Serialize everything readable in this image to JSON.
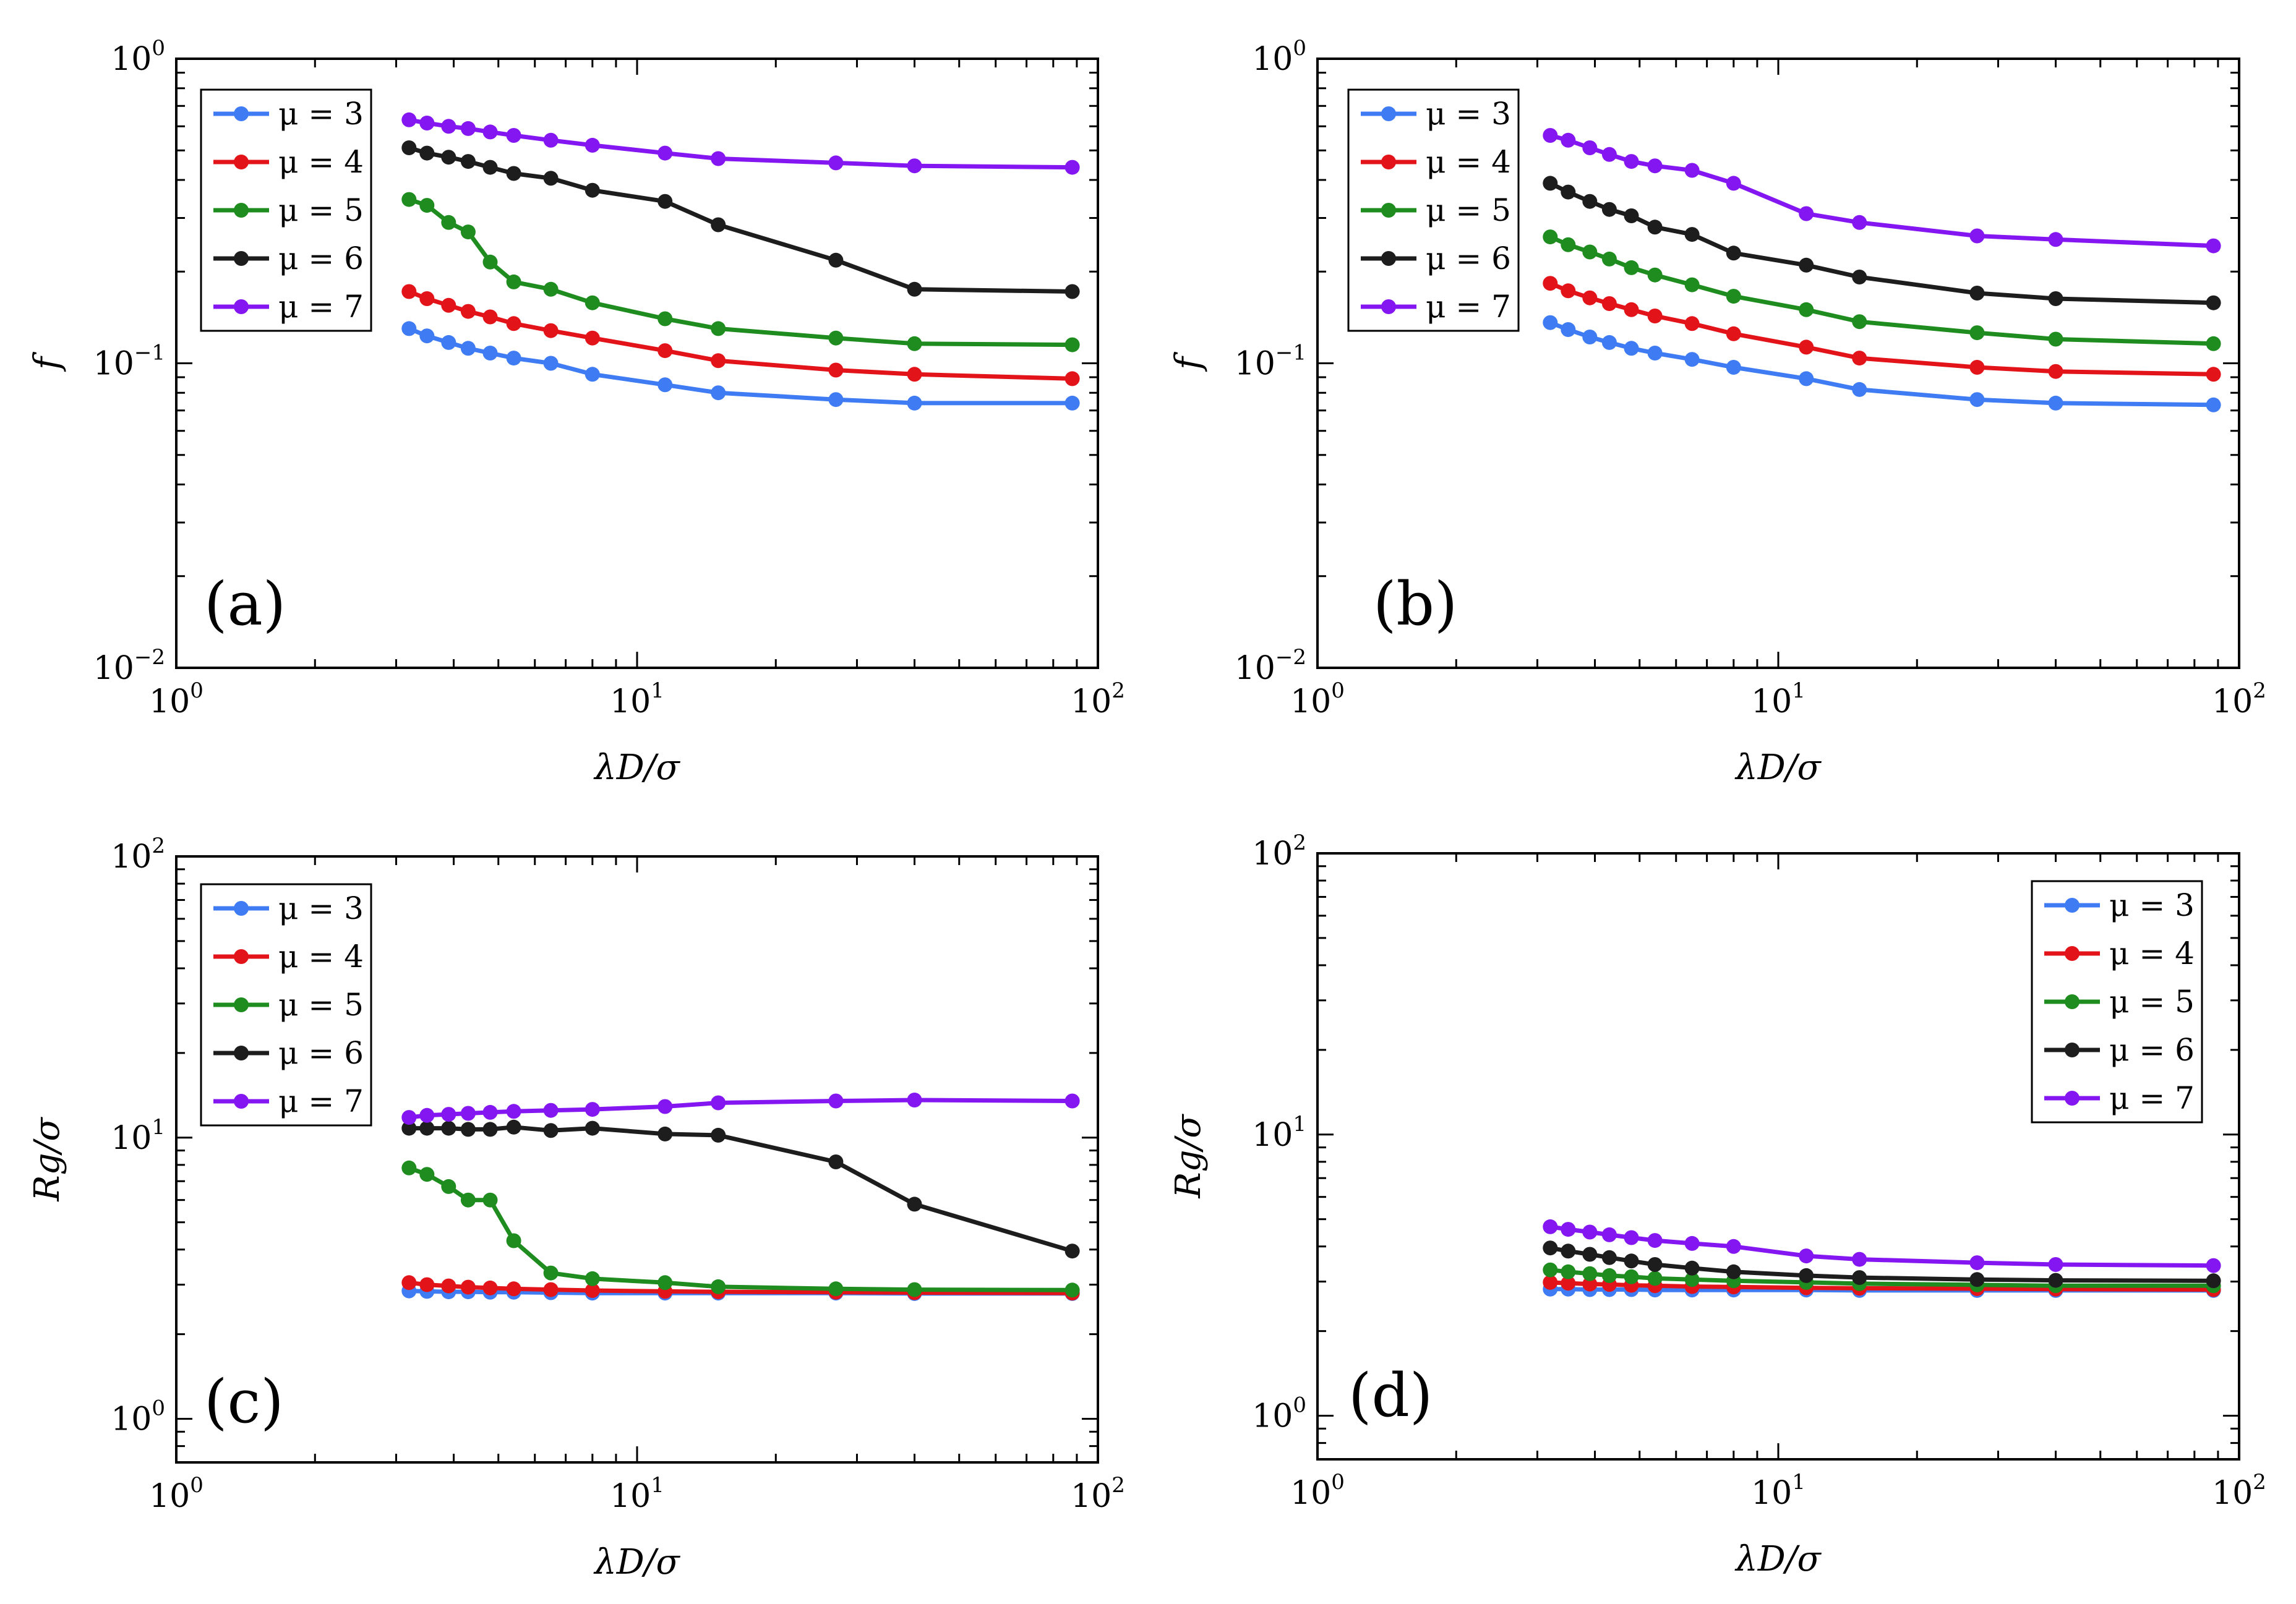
{
  "chart_data": [
    {
      "type": "line",
      "panel": "(a)",
      "xlabel": "λD/σ",
      "ylabel": "f",
      "xscale": "log",
      "yscale": "log",
      "xlim": [
        1,
        100
      ],
      "ylim": [
        0.01,
        1
      ],
      "x_ticks": [
        {
          "base": "10",
          "exp": "0"
        },
        {
          "base": "10",
          "exp": "1"
        },
        {
          "base": "10",
          "exp": "2"
        }
      ],
      "y_ticks": [
        {
          "base": "10",
          "exp": "−2"
        },
        {
          "base": "10",
          "exp": "−1"
        },
        {
          "base": "10",
          "exp": "0"
        }
      ],
      "legend_position": "top-left",
      "x": [
        3.2,
        3.5,
        3.9,
        4.3,
        4.8,
        5.4,
        6.5,
        8.0,
        11.5,
        15,
        27,
        40,
        88
      ],
      "series": [
        {
          "name": "μ = 3",
          "color": "#3f7cf3",
          "values": [
            0.13,
            0.123,
            0.117,
            0.112,
            0.108,
            0.104,
            0.1,
            0.092,
            0.085,
            0.08,
            0.076,
            0.074,
            0.074
          ]
        },
        {
          "name": "μ = 4",
          "color": "#e3131a",
          "values": [
            0.172,
            0.163,
            0.155,
            0.148,
            0.142,
            0.135,
            0.128,
            0.121,
            0.11,
            0.102,
            0.095,
            0.092,
            0.089
          ]
        },
        {
          "name": "μ = 5",
          "color": "#1e8c1e",
          "values": [
            0.345,
            0.33,
            0.29,
            0.27,
            0.215,
            0.185,
            0.175,
            0.158,
            0.14,
            0.13,
            0.121,
            0.116,
            0.115
          ]
        },
        {
          "name": "μ = 6",
          "color": "#1d1d1d",
          "values": [
            0.51,
            0.49,
            0.475,
            0.46,
            0.44,
            0.42,
            0.405,
            0.37,
            0.34,
            0.285,
            0.218,
            0.175,
            0.172
          ]
        },
        {
          "name": "μ = 7",
          "color": "#8416f2",
          "values": [
            0.63,
            0.615,
            0.6,
            0.59,
            0.575,
            0.56,
            0.54,
            0.52,
            0.49,
            0.47,
            0.455,
            0.445,
            0.44
          ]
        }
      ]
    },
    {
      "type": "line",
      "panel": "(b)",
      "xlabel": "λD/σ",
      "ylabel": "f",
      "xscale": "log",
      "yscale": "log",
      "xlim": [
        1,
        100
      ],
      "ylim": [
        0.01,
        1
      ],
      "x_ticks": [
        {
          "base": "10",
          "exp": "0"
        },
        {
          "base": "10",
          "exp": "1"
        },
        {
          "base": "10",
          "exp": "2"
        }
      ],
      "y_ticks": [
        {
          "base": "10",
          "exp": "−2"
        },
        {
          "base": "10",
          "exp": "−1"
        },
        {
          "base": "10",
          "exp": "0"
        }
      ],
      "legend_position": "top-left",
      "x": [
        3.2,
        3.5,
        3.9,
        4.3,
        4.8,
        5.4,
        6.5,
        8.0,
        11.5,
        15,
        27,
        40,
        88
      ],
      "series": [
        {
          "name": "μ = 3",
          "color": "#3f7cf3",
          "values": [
            0.136,
            0.129,
            0.122,
            0.117,
            0.112,
            0.108,
            0.103,
            0.097,
            0.089,
            0.082,
            0.076,
            0.074,
            0.073
          ]
        },
        {
          "name": "μ = 4",
          "color": "#e3131a",
          "values": [
            0.183,
            0.173,
            0.164,
            0.157,
            0.15,
            0.143,
            0.135,
            0.125,
            0.113,
            0.104,
            0.097,
            0.094,
            0.092
          ]
        },
        {
          "name": "μ = 5",
          "color": "#1e8c1e",
          "values": [
            0.26,
            0.245,
            0.232,
            0.22,
            0.206,
            0.195,
            0.181,
            0.166,
            0.15,
            0.137,
            0.126,
            0.12,
            0.116
          ]
        },
        {
          "name": "μ = 6",
          "color": "#1d1d1d",
          "values": [
            0.39,
            0.365,
            0.34,
            0.32,
            0.305,
            0.28,
            0.265,
            0.23,
            0.21,
            0.192,
            0.17,
            0.163,
            0.158
          ]
        },
        {
          "name": "μ = 7",
          "color": "#8416f2",
          "values": [
            0.56,
            0.54,
            0.51,
            0.485,
            0.46,
            0.445,
            0.43,
            0.39,
            0.31,
            0.29,
            0.262,
            0.255,
            0.243
          ]
        }
      ]
    },
    {
      "type": "line",
      "panel": "(c)",
      "xlabel": "λD/σ",
      "ylabel": "Rg/σ",
      "xscale": "log",
      "yscale": "log",
      "xlim": [
        1,
        100
      ],
      "ylim": [
        0.7,
        100
      ],
      "x_ticks": [
        {
          "base": "10",
          "exp": "0"
        },
        {
          "base": "10",
          "exp": "1"
        },
        {
          "base": "10",
          "exp": "2"
        }
      ],
      "y_ticks": [
        {
          "base": "10",
          "exp": "0"
        },
        {
          "base": "10",
          "exp": "1"
        },
        {
          "base": "10",
          "exp": "2"
        }
      ],
      "legend_position": "top-left",
      "x": [
        3.2,
        3.5,
        3.9,
        4.3,
        4.8,
        5.4,
        6.5,
        8.0,
        11.5,
        15,
        27,
        40,
        88
      ],
      "series": [
        {
          "name": "μ = 3",
          "color": "#3f7cf3",
          "values": [
            2.85,
            2.84,
            2.83,
            2.83,
            2.82,
            2.82,
            2.81,
            2.8,
            2.8,
            2.8,
            2.8,
            2.79,
            2.79
          ]
        },
        {
          "name": "μ = 4",
          "color": "#e3131a",
          "values": [
            3.05,
            3.0,
            2.97,
            2.94,
            2.92,
            2.9,
            2.88,
            2.86,
            2.84,
            2.83,
            2.82,
            2.81,
            2.8
          ]
        },
        {
          "name": "μ = 5",
          "color": "#1e8c1e",
          "values": [
            7.8,
            7.4,
            6.7,
            6.0,
            6.0,
            4.3,
            3.3,
            3.15,
            3.05,
            2.95,
            2.9,
            2.88,
            2.87
          ]
        },
        {
          "name": "μ = 6",
          "color": "#1d1d1d",
          "values": [
            10.8,
            10.8,
            10.8,
            10.7,
            10.7,
            10.9,
            10.6,
            10.8,
            10.3,
            10.2,
            8.2,
            5.8,
            3.95
          ]
        },
        {
          "name": "μ = 7",
          "color": "#8416f2",
          "values": [
            11.8,
            12.0,
            12.1,
            12.2,
            12.3,
            12.4,
            12.5,
            12.6,
            12.9,
            13.3,
            13.5,
            13.6,
            13.5
          ]
        }
      ]
    },
    {
      "type": "line",
      "panel": "(d)",
      "xlabel": "λD/σ",
      "ylabel": "Rg/σ",
      "xscale": "log",
      "yscale": "log",
      "xlim": [
        1,
        100
      ],
      "ylim": [
        0.7,
        100
      ],
      "x_ticks": [
        {
          "base": "10",
          "exp": "0"
        },
        {
          "base": "10",
          "exp": "1"
        },
        {
          "base": "10",
          "exp": "2"
        }
      ],
      "y_ticks": [
        {
          "base": "10",
          "exp": "0"
        },
        {
          "base": "10",
          "exp": "1"
        },
        {
          "base": "10",
          "exp": "2"
        }
      ],
      "legend_position": "top-right",
      "x": [
        3.2,
        3.5,
        3.9,
        4.3,
        4.8,
        5.4,
        6.5,
        8.0,
        11.5,
        15,
        27,
        40,
        88
      ],
      "series": [
        {
          "name": "μ = 3",
          "color": "#3f7cf3",
          "values": [
            2.82,
            2.82,
            2.81,
            2.81,
            2.81,
            2.8,
            2.8,
            2.8,
            2.8,
            2.79,
            2.79,
            2.79,
            2.79
          ]
        },
        {
          "name": "μ = 4",
          "color": "#e3131a",
          "values": [
            2.98,
            2.96,
            2.94,
            2.93,
            2.91,
            2.9,
            2.88,
            2.87,
            2.85,
            2.84,
            2.83,
            2.82,
            2.81
          ]
        },
        {
          "name": "μ = 5",
          "color": "#1e8c1e",
          "values": [
            3.3,
            3.25,
            3.2,
            3.15,
            3.12,
            3.08,
            3.05,
            3.02,
            2.98,
            2.95,
            2.92,
            2.9,
            2.9
          ]
        },
        {
          "name": "μ = 6",
          "color": "#1d1d1d",
          "values": [
            3.95,
            3.85,
            3.75,
            3.65,
            3.55,
            3.45,
            3.35,
            3.25,
            3.15,
            3.1,
            3.05,
            3.03,
            3.02
          ]
        },
        {
          "name": "μ = 7",
          "color": "#8416f2",
          "values": [
            4.7,
            4.6,
            4.5,
            4.4,
            4.3,
            4.2,
            4.1,
            4.0,
            3.7,
            3.6,
            3.5,
            3.45,
            3.42
          ]
        }
      ]
    }
  ]
}
